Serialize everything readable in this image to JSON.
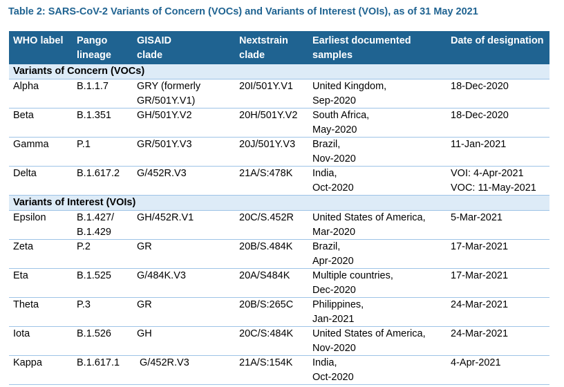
{
  "caption": "Table 2: SARS-CoV-2 Variants of Concern (VOCs) and Variants of Interest (VOIs), as of 31 May 2021",
  "header": {
    "who_label": "WHO label",
    "pango": [
      "Pango",
      "lineage"
    ],
    "gisaid": [
      "GISAID",
      "clade"
    ],
    "nextstrain": [
      "Nextstrain",
      "clade"
    ],
    "samples": [
      "Earliest documented",
      "samples"
    ],
    "designation": "Date of designation"
  },
  "sections": [
    {
      "title": "Variants of Concern (VOCs)",
      "rows": [
        {
          "who": "Alpha",
          "pango": [
            "B.1.1.7"
          ],
          "gisaid": [
            "GRY (formerly",
            "GR/501Y.V1)"
          ],
          "nextstrain": "20I/501Y.V1",
          "samples": [
            "United Kingdom,",
            "Sep-2020"
          ],
          "designation": [
            "18-Dec-2020"
          ]
        },
        {
          "who": "Beta",
          "pango": [
            "B.1.351"
          ],
          "gisaid": [
            "GH/501Y.V2"
          ],
          "nextstrain": "20H/501Y.V2",
          "samples": [
            "South Africa,",
            "May-2020"
          ],
          "designation": [
            "18-Dec-2020"
          ]
        },
        {
          "who": "Gamma",
          "pango": [
            "P.1"
          ],
          "gisaid": [
            "GR/501Y.V3"
          ],
          "nextstrain": "20J/501Y.V3",
          "samples": [
            "Brazil,",
            "Nov-2020"
          ],
          "designation": [
            "11-Jan-2021"
          ]
        },
        {
          "who": "Delta",
          "pango": [
            "B.1.617.2"
          ],
          "gisaid": [
            "G/452R.V3"
          ],
          "nextstrain": "21A/S:478K",
          "samples": [
            "India,",
            "Oct-2020"
          ],
          "designation": [
            "VOI: 4-Apr-2021",
            "VOC: 11-May-2021"
          ]
        }
      ]
    },
    {
      "title": "Variants of Interest (VOIs)",
      "rows": [
        {
          "who": "Epsilon",
          "pango": [
            "B.1.427/",
            "B.1.429"
          ],
          "gisaid": [
            "GH/452R.V1"
          ],
          "nextstrain": "20C/S.452R",
          "samples": [
            "United States of America,",
            "Mar-2020"
          ],
          "designation": [
            "5-Mar-2021"
          ]
        },
        {
          "who": "Zeta",
          "pango": [
            "P.2"
          ],
          "gisaid": [
            "GR"
          ],
          "nextstrain": "20B/S.484K",
          "samples": [
            "Brazil,",
            "Apr-2020"
          ],
          "designation": [
            "17-Mar-2021"
          ]
        },
        {
          "who": "Eta",
          "pango": [
            "B.1.525"
          ],
          "gisaid": [
            "G/484K.V3"
          ],
          "nextstrain": "20A/S484K",
          "samples": [
            "Multiple countries,",
            "Dec-2020"
          ],
          "designation": [
            "17-Mar-2021"
          ]
        },
        {
          "who": "Theta",
          "pango": [
            "P.3"
          ],
          "gisaid": [
            "GR"
          ],
          "nextstrain": "20B/S:265C",
          "samples": [
            "Philippines,",
            "Jan-2021"
          ],
          "designation": [
            "24-Mar-2021"
          ]
        },
        {
          "who": "Iota",
          "pango": [
            "B.1.526"
          ],
          "gisaid": [
            "GH"
          ],
          "nextstrain": "20C/S:484K",
          "samples": [
            "United States of America,",
            "Nov-2020"
          ],
          "designation": [
            "24-Mar-2021"
          ]
        },
        {
          "who": "Kappa",
          "pango": [
            "B.1.617.1"
          ],
          "gisaid": [
            " G/452R.V3"
          ],
          "nextstrain": "21A/S:154K",
          "samples": [
            "India,",
            "Oct-2020"
          ],
          "designation": [
            "4-Apr-2021"
          ]
        }
      ]
    }
  ],
  "colors": {
    "header_bg": "#1f6391",
    "caption_text": "#1f6391",
    "section_bg": "#ddebf7",
    "row_rule": "#9dc3e6"
  }
}
